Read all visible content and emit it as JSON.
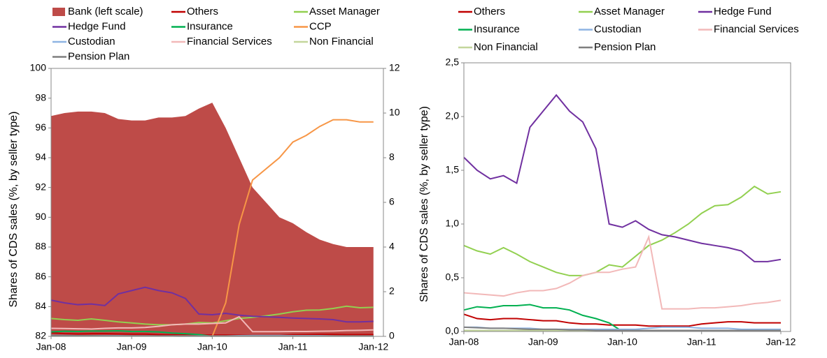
{
  "chart_data": [
    {
      "type": "combo",
      "y_label": "Shares of CDS sales (%, by seller type)",
      "categories": [
        "Jan-08",
        null,
        null,
        null,
        null,
        null,
        "Jan-09",
        null,
        null,
        null,
        null,
        null,
        "Jan-10",
        null,
        null,
        null,
        null,
        null,
        "Jan-11",
        null,
        null,
        null,
        null,
        null,
        "Jan-12"
      ],
      "ylim": [
        82,
        100
      ],
      "yticks": [
        82,
        84,
        86,
        88,
        90,
        92,
        94,
        96,
        98,
        100
      ],
      "y2lim": [
        0,
        12
      ],
      "y2ticks": [
        0,
        2,
        4,
        6,
        8,
        10,
        12
      ],
      "series": [
        {
          "name": "Bank (left scale)",
          "type": "area",
          "color": "#be4b48",
          "values": [
            96.8,
            97.0,
            97.1,
            97.1,
            97.0,
            96.6,
            96.5,
            96.5,
            96.7,
            96.7,
            96.8,
            97.3,
            97.7,
            96.0,
            94.0,
            92.0,
            91.0,
            90.0,
            89.6,
            89.0,
            88.5,
            88.2,
            88.0,
            88.0,
            88.0
          ]
        },
        {
          "name": "Others",
          "axis": "y2",
          "color": "#c00000",
          "values": [
            0.16,
            0.12,
            0.11,
            0.12,
            0.12,
            0.11,
            0.1,
            0.1,
            0.08,
            0.07,
            0.07,
            0.06,
            0.06,
            0.06,
            0.05,
            0.05,
            0.05,
            0.05,
            0.07,
            0.08,
            0.09,
            0.09,
            0.08,
            0.08,
            0.08
          ]
        },
        {
          "name": "Asset Manager",
          "axis": "y2",
          "color": "#92d050",
          "values": [
            0.8,
            0.75,
            0.72,
            0.78,
            0.72,
            0.65,
            0.6,
            0.55,
            0.52,
            0.52,
            0.55,
            0.62,
            0.6,
            0.7,
            0.8,
            0.85,
            0.92,
            1.0,
            1.1,
            1.17,
            1.18,
            1.25,
            1.35,
            1.28,
            1.3
          ]
        },
        {
          "name": "Hedge Fund",
          "axis": "y2",
          "color": "#7030a0",
          "values": [
            1.62,
            1.5,
            1.42,
            1.45,
            1.38,
            1.9,
            2.05,
            2.2,
            2.05,
            1.95,
            1.7,
            1.0,
            0.97,
            1.03,
            0.95,
            0.9,
            0.88,
            0.85,
            0.82,
            0.8,
            0.78,
            0.75,
            0.65,
            0.65,
            0.67
          ]
        },
        {
          "name": "Insurance",
          "axis": "y2",
          "color": "#00b050",
          "values": [
            0.2,
            0.23,
            0.22,
            0.24,
            0.24,
            0.25,
            0.22,
            0.22,
            0.2,
            0.15,
            0.12,
            0.08,
            0.0,
            null,
            null,
            null,
            null,
            null,
            null,
            null,
            null,
            null,
            null,
            null,
            null
          ]
        },
        {
          "name": "CCP",
          "axis": "y2",
          "color": "#f79646",
          "values": [
            null,
            null,
            null,
            null,
            null,
            null,
            null,
            null,
            null,
            null,
            null,
            null,
            0,
            1.5,
            5.0,
            7.0,
            7.5,
            8.0,
            8.7,
            9.0,
            9.4,
            9.7,
            9.7,
            9.6,
            9.6
          ]
        },
        {
          "name": "Custodian",
          "axis": "y2",
          "color": "#8eb4e3",
          "values": [
            0.04,
            0.04,
            0.03,
            0.03,
            0.03,
            0.03,
            0.02,
            0.02,
            0.02,
            0.02,
            0.02,
            0.02,
            0.02,
            0.02,
            0.03,
            0.04,
            0.04,
            0.04,
            0.03,
            0.03,
            0.03,
            0.02,
            0.02,
            0.02,
            0.02
          ]
        },
        {
          "name": "Financial Services",
          "axis": "y2",
          "color": "#f2b8b8",
          "values": [
            0.36,
            0.35,
            0.34,
            0.33,
            0.36,
            0.38,
            0.38,
            0.4,
            0.45,
            0.52,
            0.55,
            0.55,
            0.58,
            0.6,
            0.88,
            0.21,
            0.21,
            0.21,
            0.22,
            0.22,
            0.23,
            0.24,
            0.26,
            0.27,
            0.29
          ]
        },
        {
          "name": "Non Financial",
          "axis": "y2",
          "color": "#c3d69b",
          "values": [
            0.01,
            0.01,
            0.01,
            0.01,
            0.01,
            0.01,
            0.01,
            0.01,
            0.01,
            0.01,
            0.01,
            0.01,
            0.01,
            0.01,
            0.01,
            0.01,
            0.01,
            0.01,
            0.01,
            0.01,
            0.01,
            0.01,
            0.01,
            0.01,
            0.01
          ]
        },
        {
          "name": "Pension Plan",
          "axis": "y2",
          "color": "#7f7f7f",
          "values": [
            0.04,
            0.035,
            0.03,
            0.03,
            0.025,
            0.02,
            0.02,
            0.02,
            0.015,
            0.015,
            0.01,
            0.01,
            0.01,
            0.01,
            0.01,
            0.01,
            0.01,
            0.01,
            0.01,
            0.01,
            0.01,
            0.01,
            0.01,
            0.01,
            0.01
          ]
        }
      ]
    },
    {
      "type": "line",
      "y_label": "Shares of CDS sales (%, by seller type)",
      "categories": [
        "Jan-08",
        null,
        null,
        null,
        null,
        null,
        "Jan-09",
        null,
        null,
        null,
        null,
        null,
        "Jan-10",
        null,
        null,
        null,
        null,
        null,
        "Jan-11",
        null,
        null,
        null,
        null,
        null,
        "Jan-12"
      ],
      "ylim": [
        0,
        2.5
      ],
      "yticks": [
        {
          "value": 0,
          "label": "0,0"
        },
        {
          "value": 0.5,
          "label": "0,5"
        },
        {
          "value": 1,
          "label": "1,0"
        },
        {
          "value": 1.5,
          "label": "1,5"
        },
        {
          "value": 2,
          "label": "2,0"
        },
        {
          "value": 2.5,
          "label": "2,5"
        }
      ],
      "series": [
        {
          "name": "Others",
          "color": "#c00000",
          "values": [
            0.16,
            0.12,
            0.11,
            0.12,
            0.12,
            0.11,
            0.1,
            0.1,
            0.08,
            0.07,
            0.07,
            0.06,
            0.06,
            0.06,
            0.05,
            0.05,
            0.05,
            0.05,
            0.07,
            0.08,
            0.09,
            0.09,
            0.08,
            0.08,
            0.08
          ]
        },
        {
          "name": "Asset Manager",
          "color": "#92d050",
          "values": [
            0.8,
            0.75,
            0.72,
            0.78,
            0.72,
            0.65,
            0.6,
            0.55,
            0.52,
            0.52,
            0.55,
            0.62,
            0.6,
            0.7,
            0.8,
            0.85,
            0.92,
            1.0,
            1.1,
            1.17,
            1.18,
            1.25,
            1.35,
            1.28,
            1.3
          ]
        },
        {
          "name": "Hedge Fund",
          "color": "#7030a0",
          "values": [
            1.62,
            1.5,
            1.42,
            1.45,
            1.38,
            1.9,
            2.05,
            2.2,
            2.05,
            1.95,
            1.7,
            1.0,
            0.97,
            1.03,
            0.95,
            0.9,
            0.88,
            0.85,
            0.82,
            0.8,
            0.78,
            0.75,
            0.65,
            0.65,
            0.67
          ]
        },
        {
          "name": "Insurance",
          "color": "#00b050",
          "values": [
            0.2,
            0.23,
            0.22,
            0.24,
            0.24,
            0.25,
            0.22,
            0.22,
            0.2,
            0.15,
            0.12,
            0.08,
            0.0,
            null,
            null,
            null,
            null,
            null,
            null,
            null,
            null,
            null,
            null,
            null,
            null
          ]
        },
        {
          "name": "Custodian",
          "color": "#8eb4e3",
          "values": [
            0.04,
            0.04,
            0.03,
            0.03,
            0.03,
            0.03,
            0.02,
            0.02,
            0.02,
            0.02,
            0.02,
            0.02,
            0.02,
            0.02,
            0.03,
            0.04,
            0.04,
            0.04,
            0.03,
            0.03,
            0.03,
            0.02,
            0.02,
            0.02,
            0.02
          ]
        },
        {
          "name": "Financial Services",
          "color": "#f2b8b8",
          "values": [
            0.36,
            0.35,
            0.34,
            0.33,
            0.36,
            0.38,
            0.38,
            0.4,
            0.45,
            0.52,
            0.55,
            0.55,
            0.58,
            0.6,
            0.88,
            0.21,
            0.21,
            0.21,
            0.22,
            0.22,
            0.23,
            0.24,
            0.26,
            0.27,
            0.29
          ]
        },
        {
          "name": "Non Financial",
          "color": "#c3d69b",
          "values": [
            0.01,
            0.01,
            0.01,
            0.01,
            0.01,
            0.01,
            0.01,
            0.01,
            0.01,
            0.01,
            0.01,
            0.01,
            0.01,
            0.01,
            0.01,
            0.01,
            0.01,
            0.01,
            0.01,
            0.01,
            0.01,
            0.01,
            0.01,
            0.01,
            0.01
          ]
        },
        {
          "name": "Pension Plan",
          "color": "#7f7f7f",
          "values": [
            0.04,
            0.035,
            0.03,
            0.03,
            0.025,
            0.02,
            0.02,
            0.02,
            0.015,
            0.015,
            0.01,
            0.01,
            0.01,
            0.01,
            0.01,
            0.01,
            0.01,
            0.01,
            0.01,
            0.01,
            0.01,
            0.01,
            0.01,
            0.01,
            0.01
          ]
        }
      ]
    }
  ]
}
